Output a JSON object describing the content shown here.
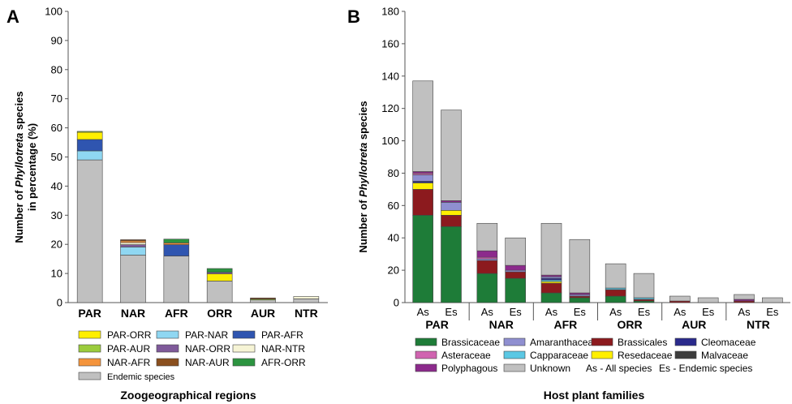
{
  "chart_data": [
    {
      "panel": "A",
      "type": "bar",
      "stacked": true,
      "xlabel": "Zoogeographical regions",
      "ylabel": [
        "Number of ",
        "Phyllotreta",
        " species",
        "in percentage (%)"
      ],
      "ylim": [
        0,
        100
      ],
      "yticks": [
        0,
        10,
        20,
        30,
        40,
        50,
        60,
        70,
        80,
        90,
        100
      ],
      "categories": [
        "PAR",
        "NAR",
        "AFR",
        "ORR",
        "AUR",
        "NTR"
      ],
      "series": [
        {
          "name": "Endemic species",
          "color": "#c0c0c0",
          "values": [
            49,
            16.3,
            16,
            7.4,
            0.9,
            1.3
          ]
        },
        {
          "name": "PAR-NAR",
          "color": "#8fd7f2",
          "values": [
            3.1,
            2.8,
            0,
            0,
            0,
            0
          ]
        },
        {
          "name": "PAR-AFR",
          "color": "#2f55b0",
          "values": [
            3.9,
            0,
            3.9,
            0,
            0,
            0
          ]
        },
        {
          "name": "PAR-ORR",
          "color": "#ffef00",
          "values": [
            2.5,
            0,
            0,
            2.5,
            0,
            0
          ]
        },
        {
          "name": "PAR-AUR",
          "color": "#9bcc3c",
          "values": [
            0.3,
            0,
            0,
            0,
            0.3,
            0
          ]
        },
        {
          "name": "NAR-ORR",
          "color": "#7f5a9a",
          "values": [
            0,
            0.8,
            0,
            0.5,
            0,
            0
          ]
        },
        {
          "name": "NAR-NTR",
          "color": "#f6f4d5",
          "values": [
            0,
            0.7,
            0,
            0,
            0,
            0.8
          ]
        },
        {
          "name": "NAR-AFR",
          "color": "#f4943c",
          "values": [
            0,
            0.6,
            0.6,
            0,
            0,
            0
          ]
        },
        {
          "name": "NAR-AUR",
          "color": "#8a4f1e",
          "values": [
            0,
            0.4,
            0,
            0,
            0.4,
            0
          ]
        },
        {
          "name": "AFR-ORR",
          "color": "#2c9440",
          "values": [
            0,
            0,
            1.3,
            1.3,
            0,
            0
          ]
        }
      ],
      "legend": {
        "placement": "bottom",
        "order": [
          "PAR-ORR",
          "PAR-NAR",
          "PAR-AFR",
          "PAR-AUR",
          "NAR-ORR",
          "NAR-NTR",
          "NAR-AFR",
          "NAR-AUR",
          "AFR-ORR",
          "Endemic species"
        ]
      }
    },
    {
      "panel": "B",
      "type": "bar",
      "stacked": true,
      "xlabel": "Host plant families",
      "ylabel": [
        "Number of ",
        "Phyllotreta",
        " species"
      ],
      "ylim": [
        0,
        180
      ],
      "yticks": [
        0,
        20,
        40,
        60,
        80,
        100,
        120,
        140,
        160,
        180
      ],
      "groups": [
        "PAR",
        "NAR",
        "AFR",
        "ORR",
        "AUR",
        "NTR"
      ],
      "categories": [
        "As",
        "Es",
        "As",
        "Es",
        "As",
        "Es",
        "As",
        "Es",
        "As",
        "Es",
        "As",
        "Es"
      ],
      "series": [
        {
          "name": "Brassicaceae",
          "color": "#1e7c38",
          "values": [
            54,
            47,
            18,
            15,
            6,
            3,
            4,
            1,
            0,
            0,
            0,
            0
          ]
        },
        {
          "name": "Brassicales",
          "color": "#8c1a1e",
          "values": [
            16,
            7,
            8,
            4,
            6,
            1,
            4,
            1,
            1,
            0,
            1,
            0
          ]
        },
        {
          "name": "Resedaceae",
          "color": "#ffef00",
          "values": [
            4,
            3,
            0,
            0,
            1,
            0,
            0,
            0,
            0,
            0,
            0,
            0
          ]
        },
        {
          "name": "Capparaceae",
          "color": "#5bc8e4",
          "values": [
            0,
            0,
            0,
            0,
            1,
            0,
            1,
            1,
            0,
            0,
            0,
            0
          ]
        },
        {
          "name": "Cleomaceae",
          "color": "#2a2a8c",
          "values": [
            1,
            0,
            0,
            0,
            1,
            0,
            0,
            0,
            0,
            0,
            0,
            0
          ]
        },
        {
          "name": "Amaranthaceae",
          "color": "#8f8fd0",
          "values": [
            4,
            5,
            1,
            1,
            1,
            1,
            0,
            0,
            0,
            0,
            0,
            0
          ]
        },
        {
          "name": "Asteraceae",
          "color": "#d064b0",
          "values": [
            1,
            0,
            1,
            0,
            0,
            0,
            0,
            0,
            0,
            0,
            0,
            0
          ]
        },
        {
          "name": "Malvaceae",
          "color": "#3c3c3c",
          "values": [
            0,
            0,
            0,
            0,
            0,
            0,
            0,
            0,
            0,
            0,
            0,
            0
          ]
        },
        {
          "name": "Polyphagous",
          "color": "#8c2a8c",
          "values": [
            1,
            1,
            4,
            3,
            1,
            1,
            0,
            0,
            0,
            0,
            1,
            0
          ]
        },
        {
          "name": "Unknown",
          "color": "#c0c0c0",
          "values": [
            56,
            56,
            17,
            17,
            32,
            33,
            15,
            15,
            3,
            3,
            3,
            3
          ]
        }
      ],
      "legend": {
        "placement": "bottom",
        "order": [
          "Brassicaceae",
          "Amaranthaceae",
          "Brassicales",
          "Cleomaceae",
          "Asteraceae",
          "Capparaceae",
          "Resedaceae",
          "Malvaceae",
          "Polyphagous",
          "Unknown"
        ],
        "notes": [
          "As - All species",
          "Es - Endemic species"
        ]
      }
    }
  ],
  "panel_letters": [
    "A",
    "B"
  ]
}
